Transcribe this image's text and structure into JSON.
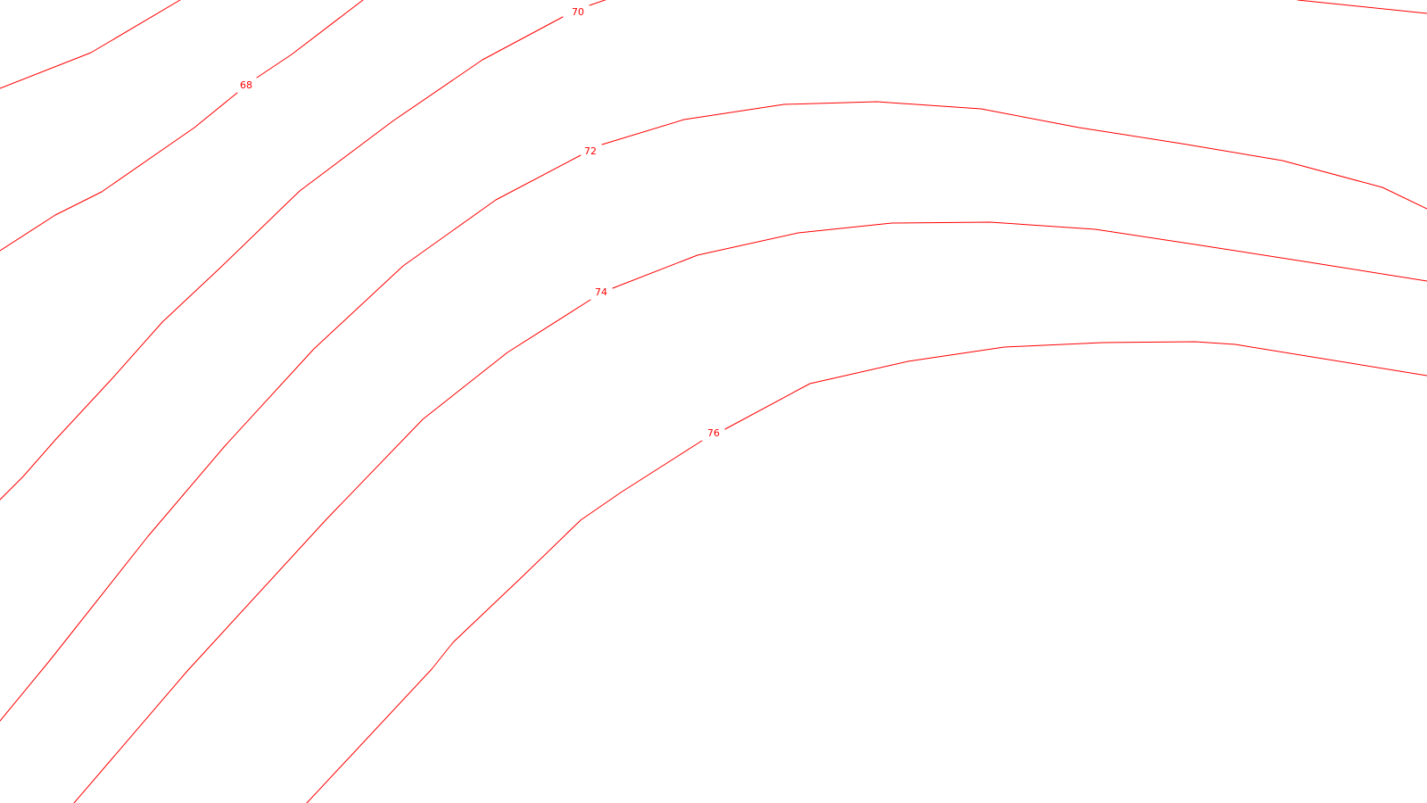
{
  "map": {
    "background_color": "#ffffff",
    "contour_color": "#ff0000",
    "contours": [
      {
        "elevation": "68",
        "has_label": true
      },
      {
        "elevation": "",
        "has_label": false
      },
      {
        "elevation": "70",
        "has_label": true
      },
      {
        "elevation": "72",
        "has_label": true
      },
      {
        "elevation": "74",
        "has_label": true
      },
      {
        "elevation": "76",
        "has_label": true
      },
      {
        "elevation": "",
        "has_label": false
      }
    ]
  }
}
